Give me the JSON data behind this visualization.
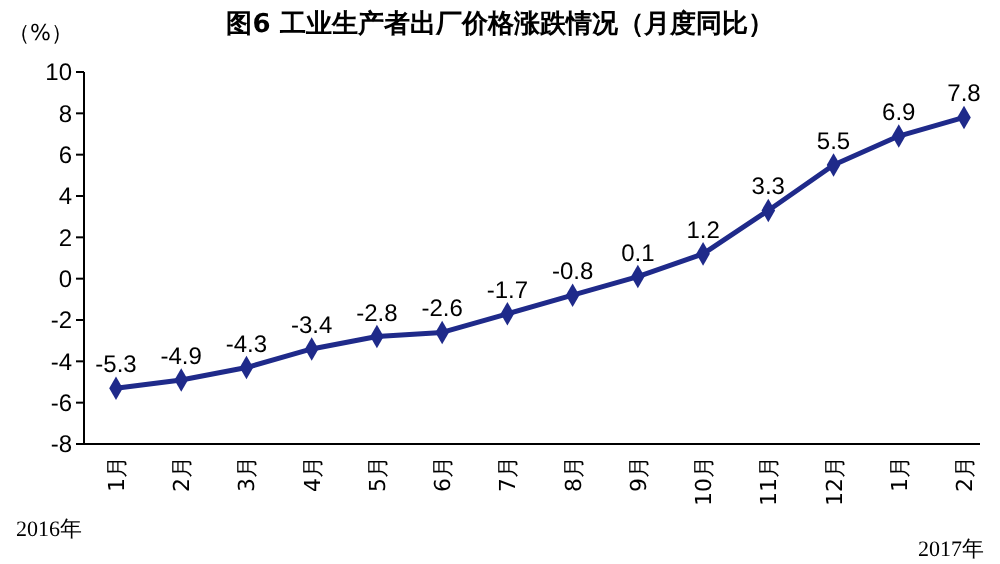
{
  "chart_data": {
    "type": "line",
    "title": "图6 工业生产者出厂价格涨跌情况（月度同比）",
    "ylabel": "（%）",
    "categories": [
      "1月",
      "2月",
      "3月",
      "4月",
      "5月",
      "6月",
      "7月",
      "8月",
      "9月",
      "10月",
      "11月",
      "12月",
      "1月",
      "2月"
    ],
    "series": [
      {
        "color": "#1f2a8a",
        "values": [
          -5.3,
          -4.9,
          -4.3,
          -3.4,
          -2.8,
          -2.6,
          -1.7,
          -0.8,
          0.1,
          1.2,
          3.3,
          5.5,
          6.9,
          7.8
        ]
      }
    ],
    "ylim": [
      -8,
      10
    ],
    "yticks": [
      -8,
      -6,
      -4,
      -2,
      0,
      2,
      4,
      6,
      8,
      10
    ],
    "grid": false,
    "marker": "diamond",
    "line_style": "solid",
    "data_labels": true,
    "annotations": [
      "2016年",
      "2017年"
    ]
  }
}
